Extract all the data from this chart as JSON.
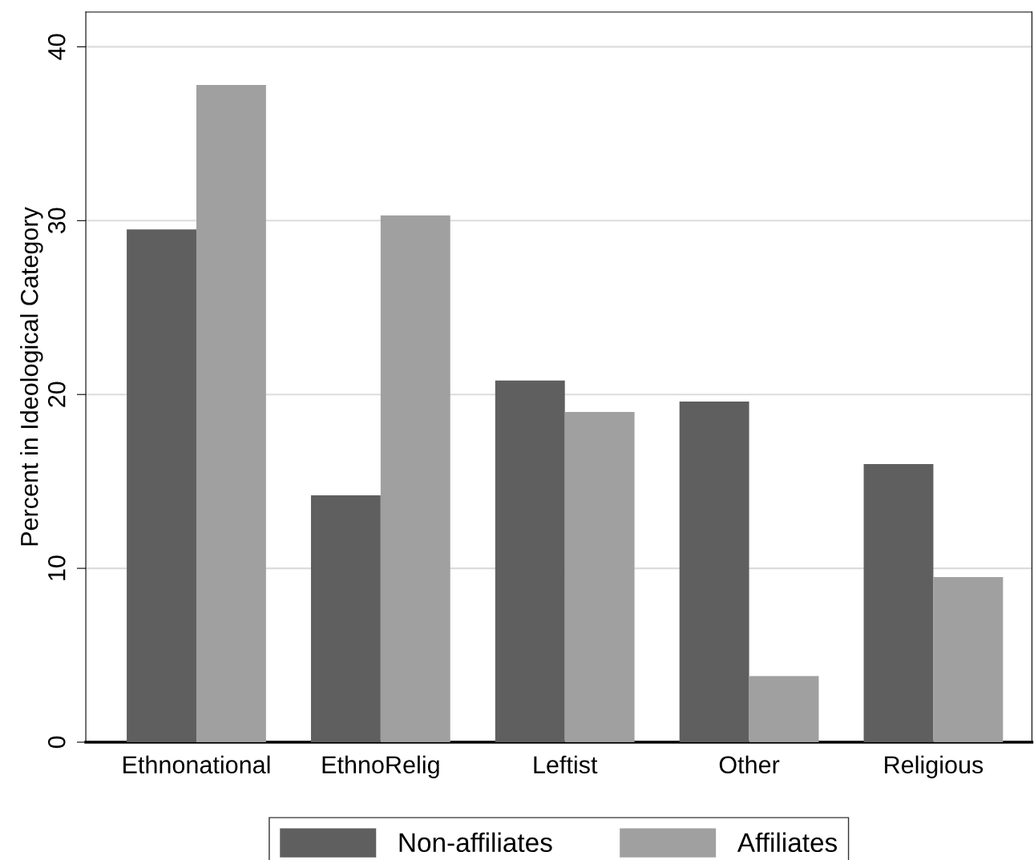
{
  "chart_data": {
    "type": "bar",
    "ylabel": "Percent in Ideological Category",
    "categories": [
      "Ethnonational",
      "EthnoRelig",
      "Leftist",
      "Other",
      "Religious"
    ],
    "series": [
      {
        "name": "Non-affiliates",
        "color": "#5f5f5f",
        "values": [
          29.5,
          14.2,
          20.8,
          19.6,
          16.0
        ]
      },
      {
        "name": "Affiliates",
        "color": "#a0a0a0",
        "values": [
          37.8,
          30.3,
          19.0,
          3.8,
          9.5
        ]
      }
    ],
    "ylim": [
      0,
      42
    ],
    "yticks": [
      0,
      10,
      20,
      30,
      40
    ],
    "grid": "y",
    "legend": "bottom"
  }
}
